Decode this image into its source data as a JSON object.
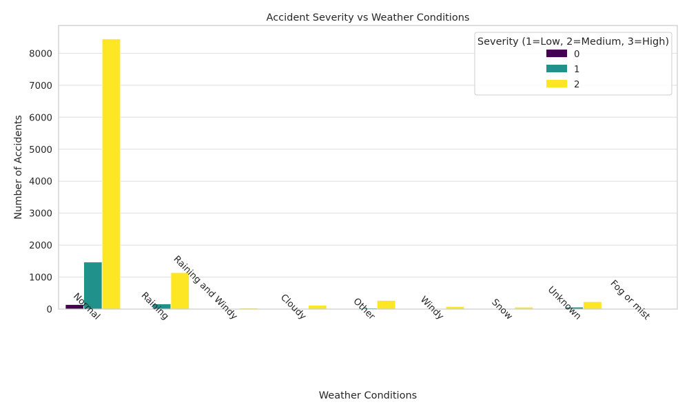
{
  "chart_data": {
    "type": "bar",
    "title": "Accident Severity vs Weather Conditions",
    "xlabel": "Weather Conditions",
    "ylabel": "Number of Accidents",
    "categories": [
      "Normal",
      "Raining",
      "Raining and Windy",
      "Cloudy",
      "Other",
      "Windy",
      "Snow",
      "Unknown",
      "Fog or mist"
    ],
    "series": [
      {
        "name": "0",
        "color": "#440154",
        "values": [
          140,
          10,
          2,
          1,
          3,
          1,
          0,
          5,
          1
        ]
      },
      {
        "name": "1",
        "color": "#21918c",
        "values": [
          1470,
          160,
          8,
          10,
          30,
          10,
          5,
          60,
          5
        ]
      },
      {
        "name": "2",
        "color": "#fde725",
        "values": [
          8450,
          1140,
          30,
          120,
          270,
          80,
          60,
          230,
          10
        ]
      }
    ],
    "ylim": [
      0,
      8870
    ],
    "yticks": [
      0,
      1000,
      2000,
      3000,
      4000,
      5000,
      6000,
      7000,
      8000
    ],
    "grid": true,
    "legend": {
      "title": "Severity (1=Low, 2=Medium, 3=High)",
      "position": "top-right"
    }
  }
}
